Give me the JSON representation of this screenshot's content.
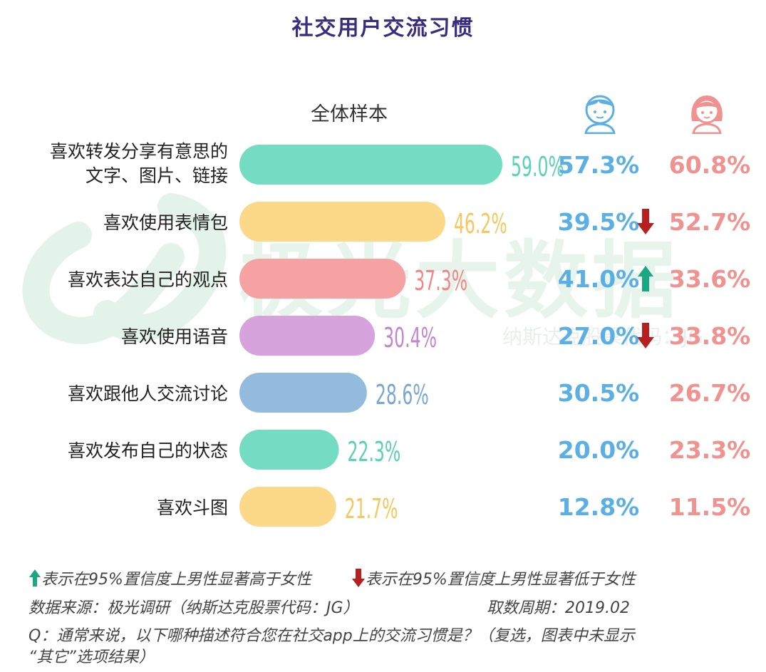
{
  "title": "社交用户交流习惯",
  "column_header": "全体样本",
  "watermark": {
    "text": "极光大数据",
    "subtext": "纳斯达克股票代码：JG"
  },
  "colors": {
    "male": "#5ab0e4",
    "female": "#f0928f",
    "up": "#1aa882",
    "down": "#b81f1f",
    "title": "#3a2c7e"
  },
  "chart_data": {
    "type": "bar",
    "orientation": "horizontal",
    "categories": [
      [
        "喜欢转发分享有意思的",
        "文字、图片、链接"
      ],
      [
        "喜欢使用表情包"
      ],
      [
        "喜欢表达自己的观点"
      ],
      [
        "喜欢使用语音"
      ],
      [
        "喜欢跟他人交流讨论"
      ],
      [
        "喜欢发布自己的状态"
      ],
      [
        "喜欢斗图"
      ]
    ],
    "series": [
      {
        "values": [
          59.0,
          46.2,
          37.3,
          30.4,
          28.6,
          22.3,
          21.7
        ],
        "labels": [
          "59.0%",
          "46.2%",
          "37.3%",
          "30.4%",
          "28.6%",
          "22.3%",
          "21.7%"
        ],
        "colors": [
          "#74dcc3",
          "#fbd989",
          "#f6a1a2",
          "#d7a3dc",
          "#93bbde",
          "#74dcc3",
          "#fbd989"
        ],
        "label_colors": [
          "#5cd1b4",
          "#f4c85f",
          "#f08786",
          "#c585cd",
          "#7aa6d1",
          "#5cd1b4",
          "#f4c85f"
        ]
      },
      {
        "values": [
          57.3,
          39.5,
          41.0,
          27.0,
          30.5,
          20.0,
          12.8
        ],
        "labels": [
          "57.3%",
          "39.5%",
          "41.0%",
          "27.0%",
          "30.5%",
          "20.0%",
          "12.8%"
        ]
      },
      {
        "values": [
          60.8,
          52.7,
          33.6,
          33.8,
          26.7,
          23.3,
          11.5
        ],
        "labels": [
          "60.8%",
          "52.7%",
          "33.6%",
          "33.8%",
          "26.7%",
          "23.3%",
          "11.5%"
        ]
      }
    ],
    "significance": [
      "",
      "down",
      "up",
      "down",
      "",
      "",
      ""
    ],
    "xlim": [
      0,
      100
    ]
  },
  "footer": {
    "legend_up": "表示在95%置信度上男性显著高于女性",
    "legend_down": "表示在95%置信度上男性显著低于女性",
    "source": "数据来源：极光调研（纳斯达克股票代码：JG）",
    "period": "取数周期：2019.02",
    "question_line1": "Q：通常来说，以下哪种描述符合您在社交app上的交流习惯是？（复选，图表中未显示",
    "question_line2": "“其它”选项结果）"
  }
}
